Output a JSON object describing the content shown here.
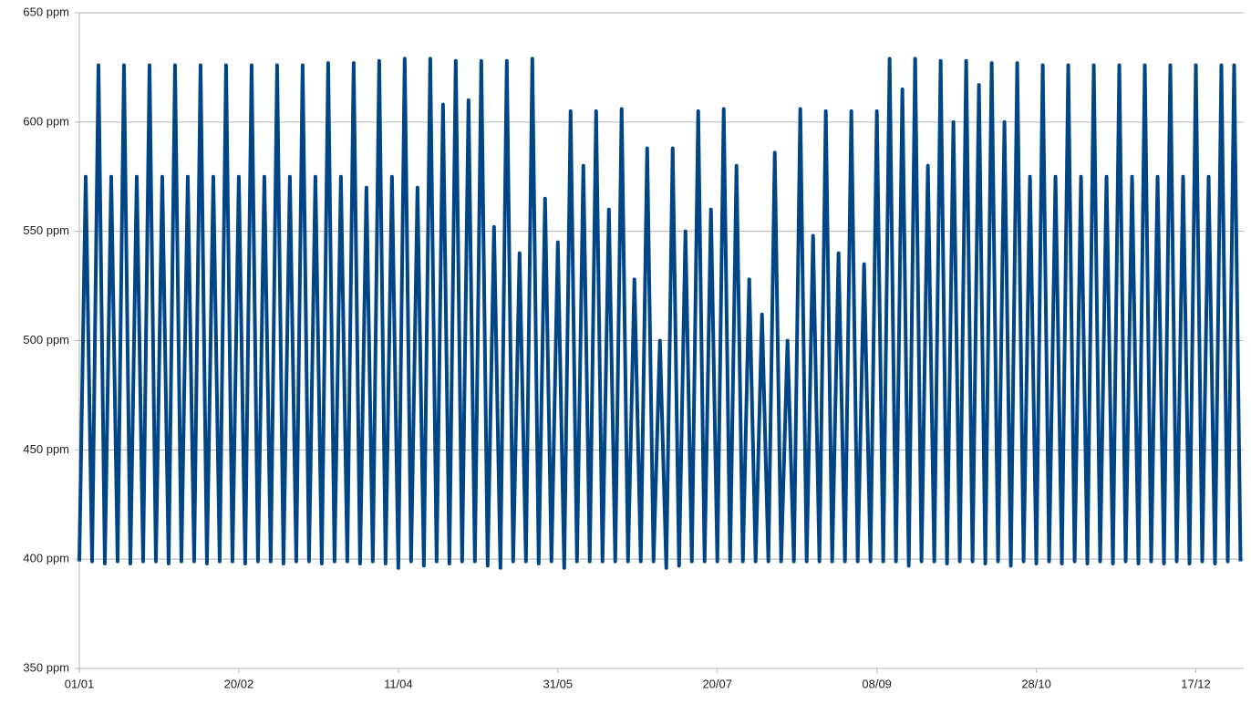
{
  "chart_data": {
    "type": "line",
    "xlim": [
      0,
      365
    ],
    "xticks": [
      {
        "value": 0,
        "label": "01/01"
      },
      {
        "value": 50,
        "label": "20/02"
      },
      {
        "value": 100,
        "label": "11/04"
      },
      {
        "value": 150,
        "label": "31/05"
      },
      {
        "value": 200,
        "label": "20/07"
      },
      {
        "value": 250,
        "label": "08/09"
      },
      {
        "value": 300,
        "label": "28/10"
      },
      {
        "value": 350,
        "label": "17/12"
      }
    ],
    "ylim": [
      350,
      650
    ],
    "yticks": [
      {
        "value": 350,
        "label": "350 ppm"
      },
      {
        "value": 400,
        "label": "400 ppm"
      },
      {
        "value": 450,
        "label": "450 ppm"
      },
      {
        "value": 500,
        "label": "500 ppm"
      },
      {
        "value": 550,
        "label": "550 ppm"
      },
      {
        "value": 600,
        "label": "600 ppm"
      },
      {
        "value": 650,
        "label": "650 ppm"
      }
    ],
    "grid": true,
    "x": [
      0,
      2,
      4,
      6,
      8,
      10,
      12,
      14,
      16,
      18,
      20,
      22,
      24,
      26,
      28,
      30,
      32,
      34,
      36,
      38,
      40,
      42,
      44,
      46,
      48,
      50,
      52,
      54,
      56,
      58,
      60,
      62,
      64,
      66,
      68,
      70,
      72,
      74,
      76,
      78,
      80,
      82,
      84,
      86,
      88,
      90,
      92,
      94,
      96,
      98,
      100,
      102,
      104,
      106,
      108,
      110,
      112,
      114,
      116,
      118,
      120,
      122,
      124,
      126,
      128,
      130,
      132,
      134,
      136,
      138,
      140,
      142,
      144,
      146,
      148,
      150,
      152,
      154,
      156,
      158,
      160,
      162,
      164,
      166,
      168,
      170,
      172,
      174,
      176,
      178,
      180,
      182,
      184,
      186,
      188,
      190,
      192,
      194,
      196,
      198,
      200,
      202,
      204,
      206,
      208,
      210,
      212,
      214,
      216,
      218,
      220,
      222,
      224,
      226,
      228,
      230,
      232,
      234,
      236,
      238,
      240,
      242,
      244,
      246,
      248,
      250,
      252,
      254,
      256,
      258,
      260,
      262,
      264,
      266,
      268,
      270,
      272,
      274,
      276,
      278,
      280,
      282,
      284,
      286,
      288,
      290,
      292,
      294,
      296,
      298,
      300,
      302,
      304,
      306,
      308,
      310,
      312,
      314,
      316,
      318,
      320,
      322,
      324,
      326,
      328,
      330,
      332,
      334,
      336,
      338,
      340,
      342,
      344,
      346,
      348,
      350,
      352,
      354,
      356,
      358,
      360,
      362,
      364
    ],
    "series": [
      {
        "color": "#004586",
        "values": [
          399,
          575,
          399,
          626,
          398,
          575,
          399,
          626,
          398,
          575,
          399,
          626,
          399,
          575,
          398,
          626,
          399,
          575,
          399,
          626,
          398,
          575,
          399,
          626,
          399,
          575,
          398,
          626,
          399,
          575,
          399,
          626,
          398,
          575,
          399,
          626,
          399,
          575,
          398,
          627,
          399,
          575,
          399,
          627,
          398,
          570,
          399,
          628,
          398,
          575,
          396,
          629,
          399,
          570,
          397,
          629,
          399,
          608,
          398,
          628,
          399,
          610,
          399,
          628,
          397,
          552,
          396,
          628,
          399,
          540,
          399,
          629,
          398,
          565,
          399,
          545,
          396,
          605,
          399,
          580,
          399,
          605,
          399,
          560,
          399,
          606,
          399,
          528,
          399,
          588,
          399,
          500,
          396,
          588,
          397,
          550,
          399,
          605,
          399,
          560,
          399,
          606,
          399,
          580,
          399,
          528,
          399,
          512,
          399,
          586,
          399,
          500,
          399,
          606,
          399,
          548,
          399,
          605,
          399,
          540,
          399,
          605,
          399,
          535,
          399,
          605,
          399,
          629,
          399,
          615,
          397,
          629,
          399,
          580,
          399,
          628,
          398,
          600,
          399,
          628,
          399,
          617,
          398,
          627,
          399,
          600,
          397,
          627,
          399,
          575,
          398,
          626,
          399,
          575,
          398,
          626,
          399,
          575,
          398,
          626,
          399,
          575,
          398,
          626,
          399,
          575,
          398,
          626,
          399,
          575,
          398,
          626,
          399,
          575,
          398,
          626,
          399,
          575,
          398,
          626,
          399,
          626,
          399
        ]
      }
    ]
  }
}
